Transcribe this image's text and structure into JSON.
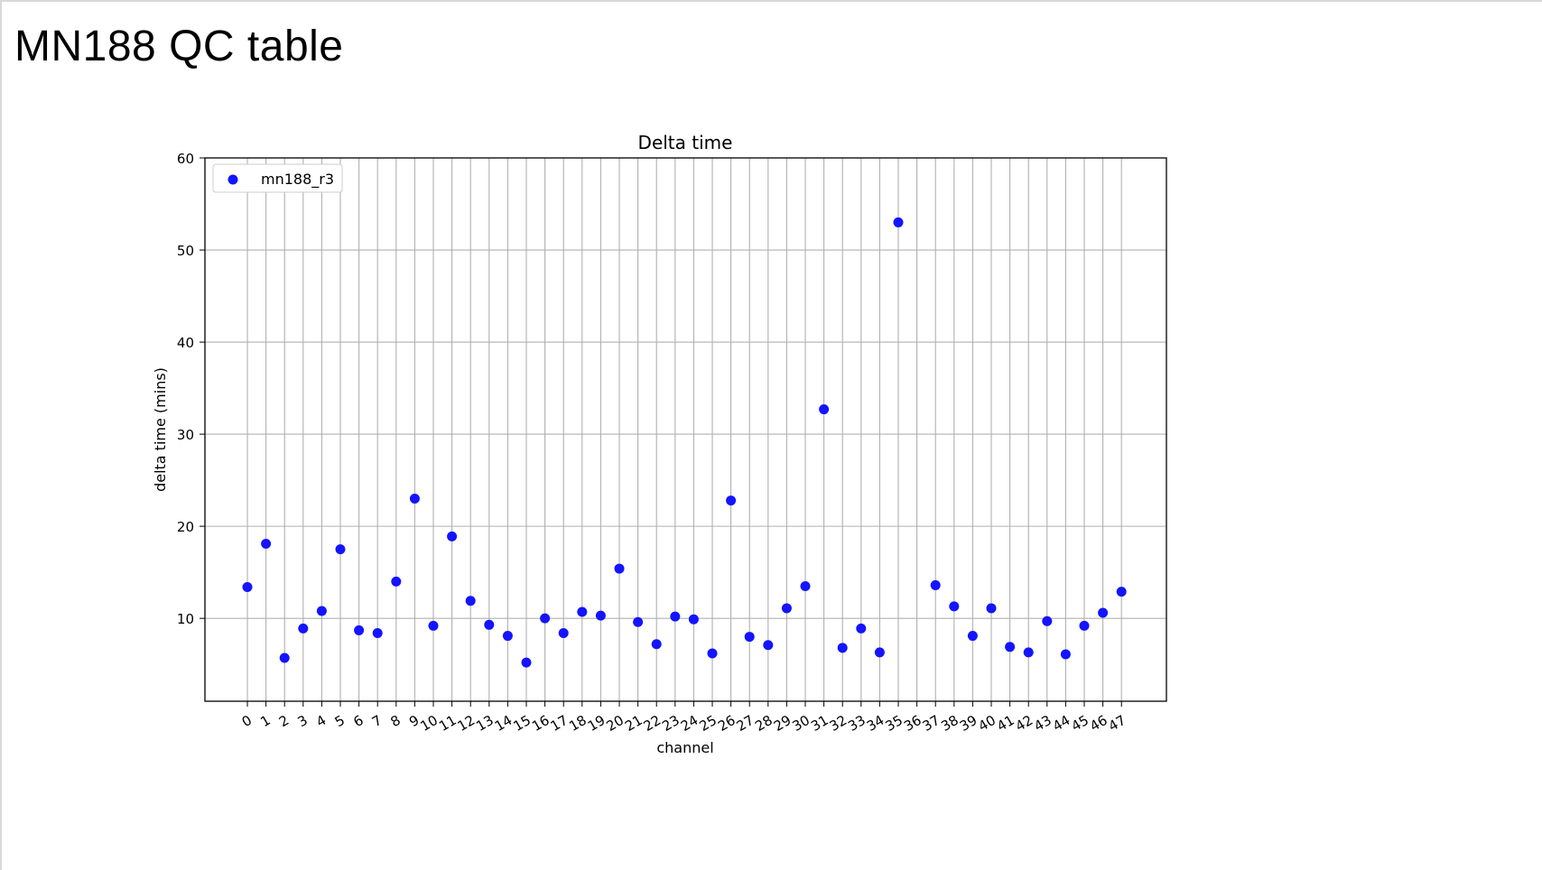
{
  "slide": {
    "title": "MN188 QC table"
  },
  "chart_data": {
    "type": "scatter",
    "title": "Delta time",
    "xlabel": "channel",
    "ylabel": "delta time (mins)",
    "ylim": [
      1,
      60
    ],
    "yticks": [
      10,
      20,
      30,
      40,
      50,
      60
    ],
    "grid": true,
    "legend_position": "top-left",
    "colors": {
      "series": "#1414ff",
      "grid": "#b0b0b0",
      "axes": "#000000"
    },
    "categories": [
      "0",
      "1",
      "2",
      "3",
      "4",
      "5",
      "6",
      "7",
      "8",
      "9",
      "10",
      "11",
      "12",
      "13",
      "14",
      "15",
      "16",
      "17",
      "18",
      "19",
      "20",
      "21",
      "22",
      "23",
      "24",
      "25",
      "26",
      "27",
      "28",
      "29",
      "30",
      "31",
      "32",
      "33",
      "34",
      "35",
      "36",
      "37",
      "38",
      "39",
      "40",
      "41",
      "42",
      "43",
      "44",
      "45",
      "46",
      "47"
    ],
    "series": [
      {
        "name": "mn188_r3",
        "points": [
          [
            0,
            13.4
          ],
          [
            1,
            18.1
          ],
          [
            2,
            5.7
          ],
          [
            3,
            8.9
          ],
          [
            4,
            10.8
          ],
          [
            5,
            17.5
          ],
          [
            6,
            8.7
          ],
          [
            7,
            8.4
          ],
          [
            8,
            14.0
          ],
          [
            9,
            23.0
          ],
          [
            10,
            9.2
          ],
          [
            11,
            18.9
          ],
          [
            12,
            11.9
          ],
          [
            13,
            9.3
          ],
          [
            14,
            8.1
          ],
          [
            15,
            5.2
          ],
          [
            16,
            10.0
          ],
          [
            17,
            8.4
          ],
          [
            18,
            10.7
          ],
          [
            19,
            10.3
          ],
          [
            20,
            15.4
          ],
          [
            21,
            9.6
          ],
          [
            22,
            7.2
          ],
          [
            23,
            10.2
          ],
          [
            24,
            9.9
          ],
          [
            25,
            6.2
          ],
          [
            26,
            22.8
          ],
          [
            27,
            8.0
          ],
          [
            28,
            7.1
          ],
          [
            29,
            11.1
          ],
          [
            30,
            13.5
          ],
          [
            31,
            32.7
          ],
          [
            32,
            6.8
          ],
          [
            33,
            8.9
          ],
          [
            34,
            6.3
          ],
          [
            35,
            53.0
          ],
          [
            37,
            13.6
          ],
          [
            38,
            11.3
          ],
          [
            39,
            8.1
          ],
          [
            40,
            11.1
          ],
          [
            41,
            6.9
          ],
          [
            42,
            6.3
          ],
          [
            43,
            9.7
          ],
          [
            44,
            6.1
          ],
          [
            45,
            9.2
          ],
          [
            46,
            10.6
          ],
          [
            47,
            12.9
          ]
        ]
      }
    ]
  }
}
